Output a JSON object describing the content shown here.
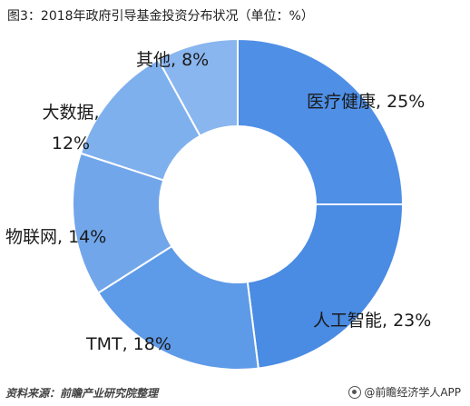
{
  "title": "图3：2018年政府引导基金投资分布状况（单位：%）",
  "source": "资料来源：前瞻产业研究院整理",
  "brand": "@前瞻经济学人APP",
  "chart_data": {
    "type": "pie",
    "style": "donut",
    "slices": [
      {
        "label": "医疗健康",
        "value": 25,
        "display": "医疗健康, 25%",
        "color": "#4f8fe6"
      },
      {
        "label": "人工智能",
        "value": 23,
        "display": "人工智能, 23%",
        "color": "#4a8be3"
      },
      {
        "label": "TMT",
        "value": 18,
        "display": "TMT, 18%",
        "color": "#5d9ae8"
      },
      {
        "label": "物联网",
        "value": 14,
        "display": "物联网, 14%",
        "color": "#71a6eb"
      },
      {
        "label": "大数据",
        "value": 12,
        "display": "大数据,\n12%",
        "color": "#7fb0ee"
      },
      {
        "label": "其他",
        "value": 8,
        "display": "其他, 8%",
        "color": "#8ab6ef"
      }
    ]
  }
}
